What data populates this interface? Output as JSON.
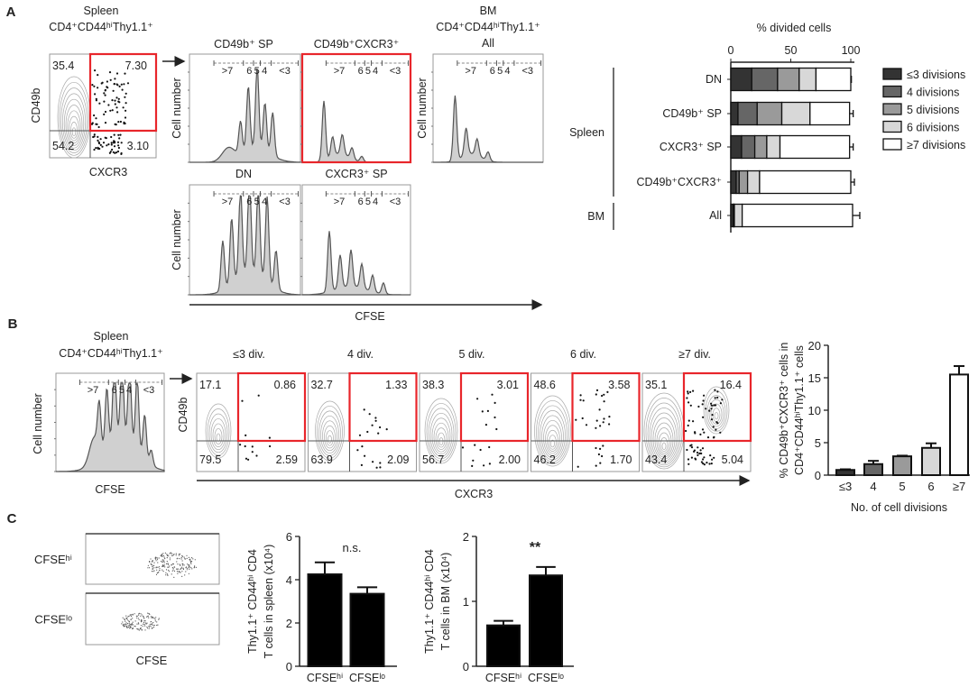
{
  "panel_labels": {
    "a": "A",
    "b": "B",
    "c": "C"
  },
  "panel_a": {
    "dotplot": {
      "title_line1": "Spleen",
      "title_line2": "CD4⁺CD44ʰⁱThy1.1⁺",
      "y_label": "CD49b",
      "x_label": "CXCR3",
      "quadrants": {
        "ul": "35.4",
        "ur": "7.30",
        "ll": "54.2",
        "lr": "3.10"
      }
    },
    "histograms": [
      {
        "title": "CD49b⁺ SP"
      },
      {
        "title": "CD49b⁺CXCR3⁺"
      },
      {
        "title_lines": [
          "BM",
          "CD4⁺CD44ʰⁱThy1.1⁺",
          "All"
        ]
      },
      {
        "title": "DN"
      },
      {
        "title": "CXCR3⁺ SP"
      }
    ],
    "hist_y_label": "Cell number",
    "gate_labels": [
      ">7",
      "6",
      "5",
      "4",
      "<3"
    ],
    "x_axis_label": "CFSE",
    "gate_highlight_color": "#e8262b"
  },
  "panel_b": {
    "histogram": {
      "title_line1": "Spleen",
      "title_line2": "CD4⁺CD44ʰⁱThy1.1⁺",
      "y_label": "Cell number",
      "x_label": "CFSE"
    },
    "y_label": "CD49b",
    "x_label": "CXCR3",
    "division_plots": [
      {
        "title": "≤3 div.",
        "ul": "17.1",
        "ur": "0.86",
        "ll": "79.5",
        "lr": "2.59"
      },
      {
        "title": "4 div.",
        "ul": "32.7",
        "ur": "1.33",
        "ll": "63.9",
        "lr": "2.09"
      },
      {
        "title": "5 div.",
        "ul": "38.3",
        "ur": "3.01",
        "ll": "56.7",
        "lr": "2.00"
      },
      {
        "title": "6 div.",
        "ul": "48.6",
        "ur": "3.58",
        "ll": "46.2",
        "lr": "1.70"
      },
      {
        "title": "≥7 div.",
        "ul": "35.1",
        "ur": "16.4",
        "ll": "43.4",
        "lr": "5.04"
      }
    ]
  },
  "panel_c": {
    "dotplots": [
      {
        "label": "CFSEʰⁱ"
      },
      {
        "label": "CFSEˡᵒ"
      }
    ],
    "x_label": "CFSE"
  },
  "chart_data": [
    {
      "type": "bar",
      "stacked": true,
      "orientation": "horizontal",
      "xlabel": "% divided  cells",
      "xlim": [
        0,
        100
      ],
      "xticks": [
        "0",
        "50",
        "100"
      ],
      "categories": [
        "DN",
        "CD49b⁺ SP",
        "CXCR3⁺ SP",
        "CD49b⁺CXCR3⁺",
        "All"
      ],
      "groups": [
        {
          "label": "Spleen",
          "categories": [
            "DN",
            "CD49b⁺ SP",
            "CXCR3⁺ SP",
            "CD49b⁺CXCR3⁺"
          ]
        },
        {
          "label": "BM",
          "categories": [
            "All"
          ]
        }
      ],
      "legend_position": "right",
      "series": [
        {
          "name": "≤3 divisions",
          "color": "#333333",
          "values": [
            17.5,
            6,
            9,
            4.5,
            2
          ],
          "errors": [
            3,
            1.5,
            2,
            1,
            1
          ]
        },
        {
          "name": "4 divisions",
          "color": "#666666",
          "values": [
            21.5,
            16,
            11,
            2.5,
            0.5
          ],
          "errors": [
            1.5,
            1,
            2,
            1,
            0.5
          ]
        },
        {
          "name": "5 divisions",
          "color": "#9a9a9a",
          "values": [
            18,
            20.5,
            10,
            7,
            0.5
          ],
          "errors": [
            2,
            2,
            2,
            1,
            0.5
          ]
        },
        {
          "name": "6 divisions",
          "color": "#d8d8d8",
          "values": [
            14,
            23.5,
            11,
            10,
            6.5
          ],
          "errors": [
            1.5,
            0.5,
            2,
            1,
            6
          ]
        },
        {
          "name": "≥7 divisions",
          "color": "#ffffff",
          "values": [
            29,
            33,
            58,
            76,
            92
          ],
          "errors": [
            0.5,
            3,
            3,
            3,
            6
          ]
        }
      ]
    },
    {
      "type": "bar",
      "ylabel_lines": [
        "% CD49b⁺CXCR3⁺  cells in",
        "CD4⁺CD44ʰⁱThy1.1⁺  cells"
      ],
      "xlabel": "No. of cell divisions",
      "categories": [
        "≤3",
        "4",
        "5",
        "6",
        "≥7"
      ],
      "values": [
        0.8,
        1.7,
        2.9,
        4.2,
        15.5
      ],
      "errors": [
        0.1,
        0.5,
        0.1,
        0.7,
        1.3
      ],
      "colors": [
        "#333333",
        "#666666",
        "#9a9a9a",
        "#d8d8d8",
        "#ffffff"
      ],
      "ylim": [
        0,
        20
      ],
      "yticks": [
        "0",
        "5",
        "10",
        "15",
        "20"
      ]
    },
    {
      "type": "bar",
      "ylabel_lines": [
        "Thy1.1⁺ CD44ʰⁱ CD4",
        "T cells in spleen (x10⁴)"
      ],
      "categories": [
        "CFSEʰⁱ",
        "CFSEˡᵒ"
      ],
      "values": [
        4.25,
        3.35
      ],
      "errors": [
        0.55,
        0.3
      ],
      "ylim": [
        0,
        6
      ],
      "yticks": [
        "0",
        "2",
        "4",
        "6"
      ],
      "annotation": "n.s.",
      "color": "#000000"
    },
    {
      "type": "bar",
      "ylabel_lines": [
        "Thy1.1⁺ CD44ʰⁱ CD4",
        "T cells in BM (x10⁴)"
      ],
      "categories": [
        "CFSEʰⁱ",
        "CFSEˡᵒ"
      ],
      "values": [
        0.63,
        1.4
      ],
      "errors": [
        0.07,
        0.13
      ],
      "ylim": [
        0,
        2
      ],
      "yticks": [
        "0",
        "1",
        "2"
      ],
      "annotation": "**",
      "color": "#000000"
    }
  ]
}
